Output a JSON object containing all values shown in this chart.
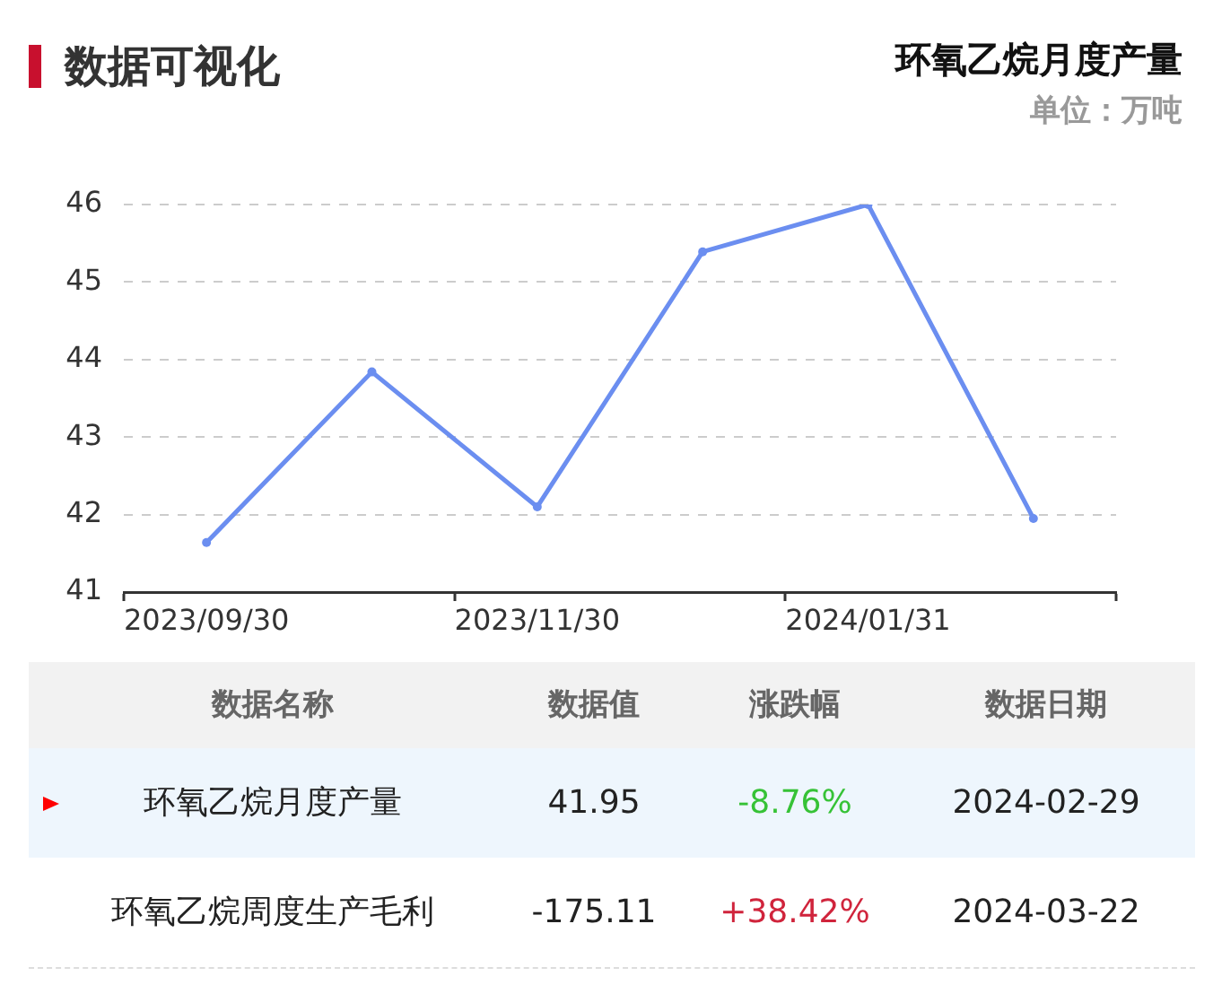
{
  "chart_data": [
    {
      "type": "line",
      "title": "环氧乙烷月度产量",
      "subtitle": "单位：万吨",
      "annotations": [
        "数据可视化"
      ],
      "categories": [
        "2023/09/30",
        null,
        "2023/11/30",
        null,
        "2024/01/31",
        null
      ],
      "values": [
        41.64,
        43.84,
        42.1,
        45.39,
        46,
        41.95
      ],
      "color": "#6b8ef0",
      "ylim": [
        41,
        46
      ],
      "yticks": [
        41,
        42,
        43,
        44,
        45,
        46
      ],
      "grid": "y",
      "legend": false,
      "marker": "circle",
      "line_style": "solid"
    },
    {
      "type": "other",
      "categories": [
        "数据名称",
        "数据值",
        "涨跌幅",
        "数据日期"
      ],
      "annotations": [
        "环氧乙烷月度产量",
        "41.95",
        "-8.76%",
        "2024-02-29",
        "环氧乙烷周度生产毛利",
        "-175.11",
        "+38.42%",
        "2024-03-22"
      ]
    }
  ]
}
